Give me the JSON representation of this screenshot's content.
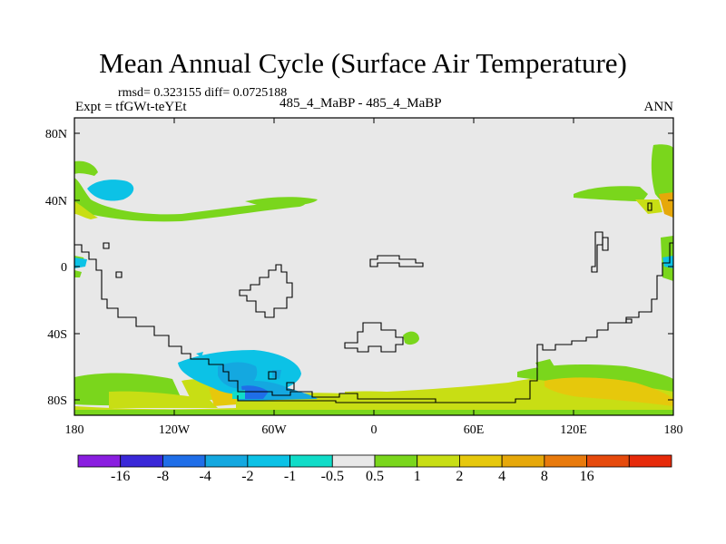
{
  "header": {
    "title": "Mean Annual Cycle (Surface Air Temperature)",
    "stats": "rmsd= 0.323155 diff= 0.0725188",
    "experiment": "Expt = tfGWt-teYEt",
    "center_label": "485_4_MaBP - 485_4_MaBP",
    "season": "ANN"
  },
  "axes": {
    "y_ticks": [
      "80N",
      "40N",
      "0",
      "40S",
      "80S"
    ],
    "x_ticks": [
      "180",
      "120W",
      "60W",
      "0",
      "60E",
      "120E",
      "180"
    ]
  },
  "colorbar": {
    "colors": [
      "#8a1ee0",
      "#3a28d8",
      "#1f6ee8",
      "#14a8e0",
      "#0cc2e6",
      "#10dcc8",
      "#e8e8e8",
      "#7ad61c",
      "#c8de14",
      "#e6c80c",
      "#e6a80a",
      "#e87a0c",
      "#e64a0c",
      "#e62a0a"
    ],
    "labels": [
      "-16",
      "-8",
      "-4",
      "-2",
      "-1",
      "-0.5",
      "0.5",
      "1",
      "2",
      "4",
      "8",
      "16"
    ]
  },
  "map": {
    "background_color": "#e8e8e8",
    "outline_color": "#000000"
  }
}
